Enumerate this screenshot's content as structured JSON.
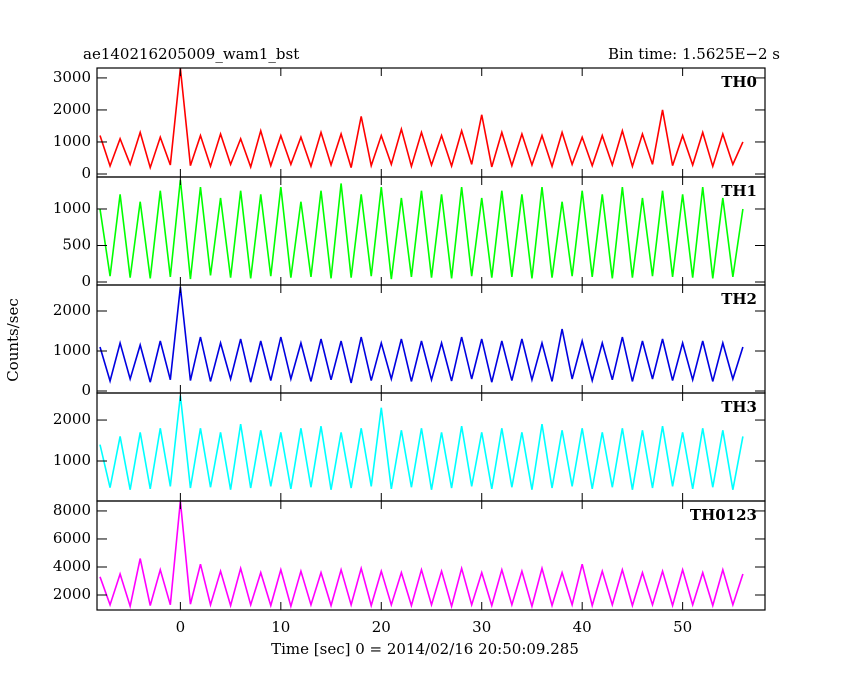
{
  "title": "ae140216205009_wam1_bst",
  "subtitle": "Bin time: 1.5625E−2 s",
  "y_label": "Counts/sec",
  "x_label": "Time [sec] 0 = 2014/02/16 20:50:09.285",
  "chart_data": [
    {
      "type": "line",
      "label": "TH0",
      "color": "#ff0000",
      "x": [
        -8,
        -7,
        -6,
        -5,
        -4,
        -3,
        -2,
        -1,
        0,
        1,
        2,
        3,
        4,
        5,
        6,
        7,
        8,
        9,
        10,
        11,
        12,
        13,
        14,
        15,
        16,
        17,
        18,
        19,
        20,
        21,
        22,
        23,
        24,
        25,
        26,
        27,
        28,
        29,
        30,
        31,
        32,
        33,
        34,
        35,
        36,
        37,
        38,
        39,
        40,
        41,
        42,
        43,
        44,
        45,
        46,
        47,
        48,
        49,
        50,
        51,
        52,
        53,
        54,
        55,
        56
      ],
      "values": [
        1200,
        250,
        1100,
        300,
        1300,
        200,
        1150,
        280,
        3300,
        260,
        1200,
        240,
        1250,
        300,
        1100,
        220,
        1350,
        260,
        1200,
        300,
        1150,
        240,
        1300,
        280,
        1250,
        200,
        1800,
        260,
        1200,
        300,
        1400,
        240,
        1300,
        280,
        1200,
        250,
        1350,
        300,
        1850,
        220,
        1300,
        260,
        1250,
        280,
        1200,
        240,
        1300,
        300,
        1150,
        260,
        1200,
        280,
        1350,
        240,
        1250,
        300,
        2000,
        260,
        1200,
        280,
        1300,
        240,
        1250,
        300,
        1000
      ],
      "xlim": [
        -8.3,
        58.2
      ],
      "xticks": [
        0,
        10,
        20,
        30,
        40,
        50
      ],
      "ylim": [
        -94,
        3310
      ],
      "yticks": [
        0,
        1000,
        2000,
        3000
      ]
    },
    {
      "type": "line",
      "label": "TH1",
      "color": "#00ff00",
      "x": [
        -8,
        -7,
        -6,
        -5,
        -4,
        -3,
        -2,
        -1,
        0,
        1,
        2,
        3,
        4,
        5,
        6,
        7,
        8,
        9,
        10,
        11,
        12,
        13,
        14,
        15,
        16,
        17,
        18,
        19,
        20,
        21,
        22,
        23,
        24,
        25,
        26,
        27,
        28,
        29,
        30,
        31,
        32,
        33,
        34,
        35,
        36,
        37,
        38,
        39,
        40,
        41,
        42,
        43,
        44,
        45,
        46,
        47,
        48,
        49,
        50,
        51,
        52,
        53,
        54,
        55,
        56
      ],
      "values": [
        1000,
        80,
        1200,
        60,
        1100,
        50,
        1250,
        70,
        1400,
        40,
        1300,
        90,
        1150,
        60,
        1250,
        50,
        1200,
        80,
        1300,
        60,
        1100,
        70,
        1250,
        50,
        1350,
        60,
        1200,
        80,
        1300,
        40,
        1150,
        70,
        1250,
        60,
        1200,
        50,
        1300,
        80,
        1150,
        60,
        1250,
        70,
        1200,
        50,
        1300,
        60,
        1100,
        80,
        1250,
        70,
        1200,
        50,
        1300,
        60,
        1150,
        80,
        1250,
        70,
        1200,
        60,
        1300,
        50,
        1150,
        70,
        1000
      ],
      "xlim": [
        -8.3,
        58.2
      ],
      "xticks": [
        0,
        10,
        20,
        30,
        40,
        50
      ],
      "ylim": [
        -41,
        1438
      ],
      "yticks": [
        0,
        500,
        1000
      ]
    },
    {
      "type": "line",
      "label": "TH2",
      "color": "#0000e0",
      "x": [
        -8,
        -7,
        -6,
        -5,
        -4,
        -3,
        -2,
        -1,
        0,
        1,
        2,
        3,
        4,
        5,
        6,
        7,
        8,
        9,
        10,
        11,
        12,
        13,
        14,
        15,
        16,
        17,
        18,
        19,
        20,
        21,
        22,
        23,
        24,
        25,
        26,
        27,
        28,
        29,
        30,
        31,
        32,
        33,
        34,
        35,
        36,
        37,
        38,
        39,
        40,
        41,
        42,
        43,
        44,
        45,
        46,
        47,
        48,
        49,
        50,
        51,
        52,
        53,
        54,
        55,
        56
      ],
      "values": [
        1100,
        250,
        1200,
        300,
        1150,
        220,
        1250,
        280,
        2600,
        260,
        1350,
        240,
        1200,
        300,
        1300,
        220,
        1250,
        260,
        1350,
        300,
        1200,
        240,
        1300,
        280,
        1250,
        200,
        1350,
        260,
        1200,
        300,
        1300,
        240,
        1250,
        280,
        1200,
        250,
        1350,
        300,
        1300,
        220,
        1250,
        260,
        1300,
        280,
        1200,
        240,
        1550,
        300,
        1250,
        260,
        1200,
        280,
        1350,
        240,
        1250,
        300,
        1300,
        260,
        1200,
        280,
        1250,
        240,
        1200,
        300,
        1100
      ],
      "xlim": [
        -8.3,
        58.2
      ],
      "xticks": [
        0,
        10,
        20,
        30,
        40,
        50
      ],
      "ylim": [
        -50,
        2650
      ],
      "yticks": [
        0,
        1000,
        2000
      ]
    },
    {
      "type": "line",
      "label": "TH3",
      "color": "#00ffff",
      "x": [
        -8,
        -7,
        -6,
        -5,
        -4,
        -3,
        -2,
        -1,
        0,
        1,
        2,
        3,
        4,
        5,
        6,
        7,
        8,
        9,
        10,
        11,
        12,
        13,
        14,
        15,
        16,
        17,
        18,
        19,
        20,
        21,
        22,
        23,
        24,
        25,
        26,
        27,
        28,
        29,
        30,
        31,
        32,
        33,
        34,
        35,
        36,
        37,
        38,
        39,
        40,
        41,
        42,
        43,
        44,
        45,
        46,
        47,
        48,
        49,
        50,
        51,
        52,
        53,
        54,
        55,
        56
      ],
      "values": [
        1400,
        350,
        1600,
        300,
        1700,
        320,
        1800,
        380,
        2600,
        340,
        1800,
        360,
        1700,
        300,
        1900,
        340,
        1750,
        380,
        1700,
        320,
        1800,
        360,
        1850,
        300,
        1700,
        340,
        1800,
        380,
        2300,
        320,
        1750,
        360,
        1800,
        300,
        1700,
        340,
        1850,
        380,
        1700,
        320,
        1800,
        360,
        1700,
        300,
        1900,
        340,
        1750,
        380,
        1800,
        320,
        1700,
        360,
        1800,
        300,
        1750,
        340,
        1850,
        380,
        1700,
        320,
        1800,
        360,
        1750,
        300,
        1600
      ],
      "xlim": [
        -8.3,
        58.2
      ],
      "xticks": [
        0,
        10,
        20,
        30,
        40,
        50
      ],
      "ylim": [
        24,
        2660
      ],
      "yticks": [
        1000,
        2000
      ]
    },
    {
      "type": "line",
      "label": "TH0123",
      "color": "#ff00ff",
      "x": [
        -8,
        -7,
        -6,
        -5,
        -4,
        -3,
        -2,
        -1,
        0,
        1,
        2,
        3,
        4,
        5,
        6,
        7,
        8,
        9,
        10,
        11,
        12,
        13,
        14,
        15,
        16,
        17,
        18,
        19,
        20,
        21,
        22,
        23,
        24,
        25,
        26,
        27,
        28,
        29,
        30,
        31,
        32,
        33,
        34,
        35,
        36,
        37,
        38,
        39,
        40,
        41,
        42,
        43,
        44,
        45,
        46,
        47,
        48,
        49,
        50,
        51,
        52,
        53,
        54,
        55,
        56
      ],
      "values": [
        3300,
        1300,
        3500,
        1200,
        4600,
        1250,
        3800,
        1300,
        8700,
        1350,
        4200,
        1300,
        3700,
        1250,
        3900,
        1300,
        3600,
        1250,
        3800,
        1200,
        3700,
        1300,
        3600,
        1250,
        3800,
        1300,
        3900,
        1250,
        3700,
        1300,
        3600,
        1250,
        3800,
        1300,
        3700,
        1200,
        3900,
        1300,
        3600,
        1250,
        3800,
        1300,
        3700,
        1200,
        3900,
        1250,
        3600,
        1300,
        4200,
        1250,
        3700,
        1300,
        3800,
        1250,
        3600,
        1300,
        3700,
        1250,
        3800,
        1300,
        3600,
        1250,
        3800,
        1300,
        3500
      ],
      "xlim": [
        -8.3,
        58.2
      ],
      "xticks": [
        0,
        10,
        20,
        30,
        40,
        50
      ],
      "ylim": [
        930,
        8710
      ],
      "yticks": [
        2000,
        4000,
        6000,
        8000
      ]
    }
  ]
}
